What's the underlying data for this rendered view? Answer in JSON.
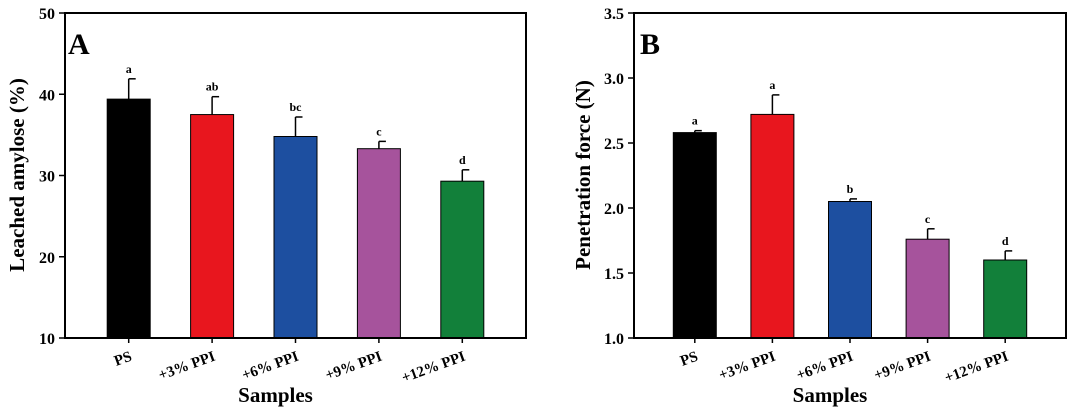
{
  "chart_data": [
    {
      "type": "bar",
      "panel_label": "A",
      "categories": [
        "PS",
        "+3% PPI",
        "+6% PPI",
        "+9% PPI",
        "+12% PPI"
      ],
      "values": [
        39.4,
        37.5,
        34.8,
        33.3,
        29.3
      ],
      "errors": [
        2.5,
        2.2,
        2.4,
        0.9,
        1.4
      ],
      "significance": [
        "a",
        "ab",
        "bc",
        "c",
        "d"
      ],
      "colors": [
        "#000000",
        "#e8161e",
        "#1d4fa0",
        "#a6539c",
        "#12803a"
      ],
      "xlabel": "Samples",
      "ylabel": "Leached amylose (%)",
      "ylim": [
        10,
        50
      ],
      "yticks": [
        10,
        20,
        30,
        40,
        50
      ],
      "grid": false
    },
    {
      "type": "bar",
      "panel_label": "B",
      "categories": [
        "PS",
        "+3% PPI",
        "+6% PPI",
        "+9% PPI",
        "+12% PPI"
      ],
      "values": [
        2.58,
        2.72,
        2.05,
        1.76,
        1.6
      ],
      "errors": [
        0.015,
        0.15,
        0.02,
        0.08,
        0.07
      ],
      "significance": [
        "a",
        "a",
        "b",
        "c",
        "d"
      ],
      "colors": [
        "#000000",
        "#e8161e",
        "#1d4fa0",
        "#a6539c",
        "#12803a"
      ],
      "xlabel": "Samples",
      "ylabel": "Penetration force (N)",
      "ylim": [
        1.0,
        3.5
      ],
      "yticks": [
        1.0,
        1.5,
        2.0,
        2.5,
        3.0,
        3.5
      ],
      "grid": false
    }
  ]
}
